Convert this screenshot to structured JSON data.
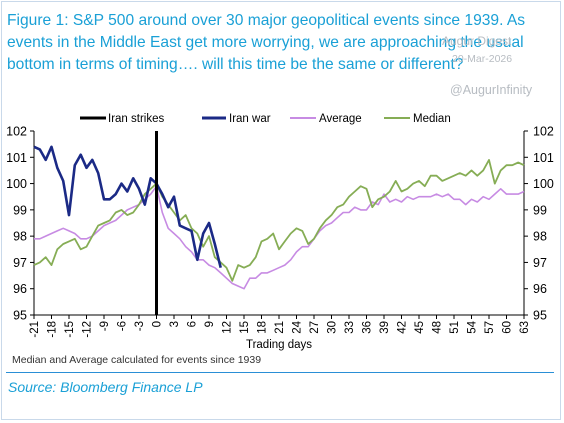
{
  "header": {
    "title": "Figure 1: S&P 500 around over 30 major geopolitical events since 1939. As events in the Middle East get more worrying, we are approaching the usual bottom in terms of timing…. will this time be the same or different?"
  },
  "watermark": {
    "line1": "Augur Digest",
    "line2": "20-Mar-2026",
    "handle": "@AugurInfinity"
  },
  "footnote": "Median and Average calculated for events since 1939",
  "source": "Source: Bloomberg Finance LP",
  "colors": {
    "iran_war": "#1b2a86",
    "average": "#c78be3",
    "median": "#86ad55",
    "iran_strikes": "#000000",
    "title": "#1aa0d6"
  },
  "chart_data": {
    "type": "line",
    "xlabel": "Trading days",
    "xlim": [
      -21,
      63
    ],
    "ylim": [
      95,
      102
    ],
    "x_ticks": [
      -21,
      -18,
      -15,
      -12,
      -9,
      -6,
      -3,
      0,
      3,
      6,
      9,
      12,
      15,
      18,
      21,
      24,
      27,
      30,
      33,
      36,
      39,
      42,
      45,
      48,
      51,
      54,
      57,
      60,
      63
    ],
    "y_ticks": [
      95,
      96,
      97,
      98,
      99,
      100,
      101,
      102
    ],
    "y_axis_both_sides": true,
    "grid": false,
    "legend_position": "top",
    "vline": {
      "name": "Iran strikes",
      "x": 0
    },
    "series": [
      {
        "name": "Iran war",
        "x": [
          -21,
          -20,
          -19,
          -18,
          -17,
          -16,
          -15,
          -14,
          -13,
          -12,
          -11,
          -10,
          -9,
          -8,
          -7,
          -6,
          -5,
          -4,
          -3,
          -2,
          -1,
          0,
          1,
          2,
          3,
          4,
          5,
          6,
          7,
          8,
          9,
          10,
          11
        ],
        "values": [
          101.4,
          101.3,
          100.9,
          101.4,
          100.6,
          100.1,
          98.8,
          100.7,
          101.1,
          100.6,
          100.9,
          100.4,
          99.4,
          99.4,
          99.6,
          100.0,
          99.7,
          100.2,
          99.8,
          99.2,
          100.2,
          100.0,
          99.6,
          99.1,
          99.5,
          98.4,
          98.3,
          98.2,
          97.1,
          98.1,
          98.5,
          97.7,
          96.8
        ]
      },
      {
        "name": "Average",
        "x": [
          -21,
          -20,
          -19,
          -18,
          -17,
          -16,
          -15,
          -14,
          -13,
          -12,
          -11,
          -10,
          -9,
          -8,
          -7,
          -6,
          -5,
          -4,
          -3,
          -2,
          -1,
          0,
          1,
          2,
          3,
          4,
          5,
          6,
          7,
          8,
          9,
          10,
          11,
          12,
          13,
          14,
          15,
          16,
          17,
          18,
          19,
          20,
          21,
          22,
          23,
          24,
          25,
          26,
          27,
          28,
          29,
          30,
          31,
          32,
          33,
          34,
          35,
          36,
          37,
          38,
          39,
          40,
          41,
          42,
          43,
          44,
          45,
          46,
          47,
          48,
          49,
          50,
          51,
          52,
          53,
          54,
          55,
          56,
          57,
          58,
          59,
          60,
          61,
          62,
          63
        ],
        "values": [
          97.9,
          97.9,
          98.0,
          98.1,
          98.2,
          98.3,
          98.2,
          98.1,
          97.9,
          97.9,
          98.0,
          98.2,
          98.4,
          98.5,
          98.6,
          98.8,
          99.0,
          99.1,
          99.2,
          99.4,
          99.6,
          99.9,
          98.9,
          98.3,
          98.1,
          97.9,
          97.6,
          97.4,
          97.1,
          97.1,
          96.9,
          96.8,
          96.6,
          96.4,
          96.2,
          96.1,
          96.0,
          96.4,
          96.4,
          96.6,
          96.6,
          96.7,
          96.8,
          96.9,
          97.1,
          97.4,
          97.6,
          97.6,
          97.9,
          98.2,
          98.4,
          98.5,
          98.7,
          98.9,
          98.9,
          99.1,
          99.0,
          99.0,
          99.3,
          99.2,
          99.6,
          99.3,
          99.4,
          99.3,
          99.5,
          99.4,
          99.5,
          99.5,
          99.5,
          99.6,
          99.5,
          99.6,
          99.4,
          99.4,
          99.2,
          99.4,
          99.3,
          99.5,
          99.4,
          99.6,
          99.8,
          99.6,
          99.6,
          99.6,
          99.7
        ]
      },
      {
        "name": "Median",
        "x": [
          -21,
          -20,
          -19,
          -18,
          -17,
          -16,
          -15,
          -14,
          -13,
          -12,
          -11,
          -10,
          -9,
          -8,
          -7,
          -6,
          -5,
          -4,
          -3,
          -2,
          -1,
          0,
          1,
          2,
          3,
          4,
          5,
          6,
          7,
          8,
          9,
          10,
          11,
          12,
          13,
          14,
          15,
          16,
          17,
          18,
          19,
          20,
          21,
          22,
          23,
          24,
          25,
          26,
          27,
          28,
          29,
          30,
          31,
          32,
          33,
          34,
          35,
          36,
          37,
          38,
          39,
          40,
          41,
          42,
          43,
          44,
          45,
          46,
          47,
          48,
          49,
          50,
          51,
          52,
          53,
          54,
          55,
          56,
          57,
          58,
          59,
          60,
          61,
          62,
          63
        ],
        "values": [
          96.9,
          97.0,
          97.2,
          96.9,
          97.5,
          97.7,
          97.8,
          97.9,
          97.5,
          97.6,
          98.0,
          98.4,
          98.5,
          98.6,
          98.9,
          99.0,
          98.8,
          98.9,
          99.2,
          99.6,
          99.8,
          100.0,
          99.5,
          99.2,
          98.9,
          98.6,
          98.8,
          98.3,
          98.1,
          97.6,
          98.0,
          97.2,
          97.0,
          96.8,
          96.3,
          96.9,
          96.8,
          96.9,
          97.2,
          97.8,
          97.9,
          98.1,
          97.5,
          97.8,
          98.1,
          98.3,
          98.2,
          97.7,
          97.9,
          98.3,
          98.6,
          98.8,
          99.1,
          99.2,
          99.5,
          99.7,
          99.9,
          99.8,
          99.1,
          99.4,
          99.5,
          99.7,
          100.1,
          99.7,
          99.8,
          100.0,
          100.1,
          99.9,
          100.3,
          100.3,
          100.1,
          100.2,
          100.3,
          100.4,
          100.3,
          100.5,
          100.3,
          100.5,
          100.9,
          100.0,
          100.5,
          100.7,
          100.7,
          100.8,
          100.7
        ]
      }
    ]
  }
}
